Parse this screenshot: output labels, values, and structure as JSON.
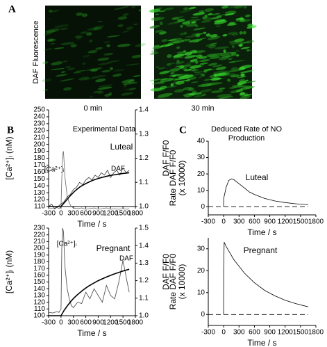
{
  "figure": {
    "panel_labels": [
      "A",
      "B",
      "C"
    ],
    "a_ylabel": "DAF Fluorescence",
    "a_captions": [
      "0 min",
      "30 min"
    ]
  },
  "chart_data": [
    {
      "type": "line",
      "title": [
        "Experimental Data"
      ],
      "panel": "Luteal",
      "xlabel": "Time / s",
      "ylabel": "[Ca²⁺]ᵢ (nM)",
      "y2label": "DAF F/F0",
      "xlim": [
        -300,
        1800
      ],
      "xticks": [
        -300,
        0,
        300,
        600,
        900,
        1200,
        1500,
        1800
      ],
      "ylim": [
        110,
        250
      ],
      "yticks": [
        110,
        120,
        130,
        140,
        150,
        160,
        170,
        180,
        190,
        200,
        210,
        220,
        230,
        240,
        250
      ],
      "y2lim": [
        1.0,
        1.4
      ],
      "y2ticks": [
        {
          "value": 1.0,
          "label": "1.0"
        },
        1.1,
        1.2,
        1.3,
        1.4
      ],
      "annotations": [
        "[Ca²⁺]ᵢ",
        "DAF"
      ],
      "series": [
        {
          "color": "#666666",
          "width": 0.8,
          "x": [
            -300,
            -200,
            -100,
            -50,
            0,
            20,
            40,
            60,
            80,
            100,
            150,
            200,
            250,
            300,
            400,
            500,
            600,
            700,
            800,
            900,
            1000,
            1100,
            1200,
            1300,
            1400,
            1500,
            1600,
            1650
          ],
          "values": [
            108,
            107,
            109,
            107,
            110,
            150,
            185,
            190,
            170,
            150,
            125,
            115,
            110,
            108,
            107,
            108,
            106,
            107,
            108,
            106,
            107,
            108,
            106,
            107,
            106,
            107,
            106,
            107
          ]
        },
        {
          "color": "#333333",
          "width": 0.8,
          "axis": "y2",
          "x": [
            -300,
            -225,
            -150,
            -75,
            0,
            75,
            150,
            225,
            300,
            375,
            450,
            525,
            600,
            675,
            750,
            825,
            900,
            975,
            1050,
            1125,
            1200,
            1275,
            1350,
            1425,
            1500,
            1575,
            1650
          ],
          "values": [
            1.0,
            1.01,
            0.99,
            1.0,
            1.01,
            1.02,
            1.04,
            1.05,
            1.07,
            1.08,
            1.1,
            1.09,
            1.11,
            1.12,
            1.11,
            1.13,
            1.12,
            1.14,
            1.13,
            1.15,
            1.12,
            1.14,
            1.15,
            1.13,
            1.16,
            1.14,
            1.15
          ]
        },
        {
          "color": "#000000",
          "width": 1.6,
          "axis": "y2",
          "x": [
            -300,
            -225,
            -150,
            -75,
            0,
            75,
            150,
            225,
            300,
            375,
            450,
            525,
            600,
            675,
            750,
            825,
            900,
            975,
            1050,
            1125,
            1200,
            1275,
            1350,
            1425,
            1500,
            1575,
            1650
          ],
          "values": [
            1.0,
            1.0,
            1.0,
            1.0,
            1.0,
            1.015,
            1.03,
            1.045,
            1.058,
            1.07,
            1.08,
            1.088,
            1.095,
            1.101,
            1.107,
            1.112,
            1.116,
            1.12,
            1.123,
            1.126,
            1.129,
            1.131,
            1.133,
            1.135,
            1.137,
            1.138,
            1.14
          ]
        }
      ]
    },
    {
      "type": "line",
      "panel": "Pregnant",
      "xlabel": "Time / s",
      "ylabel": "[Ca²⁺]ᵢ (nM)",
      "y2label": "DAF F/F0",
      "xlim": [
        -300,
        1800
      ],
      "xticks": [
        -300,
        0,
        300,
        600,
        900,
        1200,
        1500,
        1800
      ],
      "ylim": [
        100,
        230
      ],
      "yticks": [
        100,
        110,
        120,
        130,
        140,
        150,
        160,
        170,
        180,
        190,
        200,
        210,
        220,
        230
      ],
      "y2lim": [
        1.0,
        1.5
      ],
      "y2ticks": [
        {
          "value": 1.0,
          "label": "1.0"
        },
        1.1,
        1.2,
        1.3,
        1.4,
        1.5
      ],
      "annotations": [
        "[Ca²⁺]ᵢ",
        "DAF"
      ],
      "series": [
        {
          "color": "#555555",
          "width": 0.9,
          "x": [
            -300,
            -200,
            -100,
            -50,
            0,
            20,
            40,
            60,
            80,
            100,
            150,
            200,
            250,
            300,
            400,
            500,
            600,
            700,
            800,
            900,
            1000,
            1100,
            1200,
            1300,
            1400,
            1500,
            1600,
            1650
          ],
          "values": [
            105,
            104,
            106,
            105,
            110,
            200,
            230,
            225,
            195,
            170,
            140,
            125,
            115,
            112,
            120,
            118,
            135,
            125,
            140,
            130,
            120,
            145,
            130,
            125,
            150,
            182,
            150,
            135
          ]
        },
        {
          "color": "#000000",
          "width": 1.6,
          "axis": "y2",
          "x": [
            -300,
            -225,
            -150,
            -75,
            0,
            75,
            150,
            225,
            300,
            375,
            450,
            525,
            600,
            675,
            750,
            825,
            900,
            975,
            1050,
            1125,
            1200,
            1275,
            1350,
            1425,
            1500,
            1575,
            1650
          ],
          "values": [
            1.0,
            1.0,
            1.0,
            1.0,
            1.0,
            1.03,
            1.055,
            1.078,
            1.098,
            1.115,
            1.13,
            1.145,
            1.158,
            1.17,
            1.18,
            1.19,
            1.2,
            1.208,
            1.216,
            1.223,
            1.23,
            1.237,
            1.243,
            1.249,
            1.255,
            1.26,
            1.265
          ]
        }
      ]
    },
    {
      "type": "line",
      "title": [
        "Deduced Rate of NO",
        "Production"
      ],
      "panel": "Luteal",
      "xlabel": "Time / s",
      "ylabel": [
        "Rate DAF F/F0",
        "(x 10000)"
      ],
      "xlim": [
        -300,
        1800
      ],
      "xticks": [
        -300,
        0,
        300,
        600,
        900,
        1200,
        1500,
        1800
      ],
      "ylim": [
        -5,
        40
      ],
      "yticks": [
        0,
        10,
        20,
        30,
        40
      ],
      "series": [
        {
          "color": "#000000",
          "width": 0.8,
          "dash": true,
          "x": [
            -300,
            1650
          ],
          "values": [
            0,
            0
          ]
        },
        {
          "color": "#000000",
          "width": 0.8,
          "x": [
            0,
            1,
            50,
            100,
            150,
            200,
            300,
            400,
            500,
            600,
            800,
            1000,
            1200,
            1400,
            1650
          ],
          "values": [
            0,
            5,
            12,
            16,
            17,
            16.5,
            14,
            11.5,
            9,
            7.5,
            5,
            3.5,
            2.5,
            1.8,
            1.2
          ]
        }
      ]
    },
    {
      "type": "line",
      "panel": "Pregnant",
      "xlabel": "Time / s",
      "ylabel": [
        "Rate DAF F/F0",
        "(x 10000)"
      ],
      "xlim": [
        -300,
        1800
      ],
      "xticks": [
        -300,
        0,
        300,
        600,
        900,
        1200,
        1500,
        1800
      ],
      "ylim": [
        -5,
        35
      ],
      "yticks": [
        0,
        10,
        20,
        30
      ],
      "series": [
        {
          "color": "#000000",
          "width": 0.8,
          "dash": true,
          "x": [
            -300,
            1650
          ],
          "values": [
            0,
            0
          ]
        },
        {
          "color": "#000000",
          "width": 0.8,
          "x": [
            0,
            1,
            10,
            50,
            100,
            200,
            300,
            400,
            600,
            800,
            1000,
            1200,
            1400,
            1650
          ],
          "values": [
            0,
            20,
            33,
            31,
            29,
            25,
            22,
            19,
            14.5,
            11,
            8.5,
            6.5,
            5,
            3.5
          ]
        }
      ]
    }
  ]
}
